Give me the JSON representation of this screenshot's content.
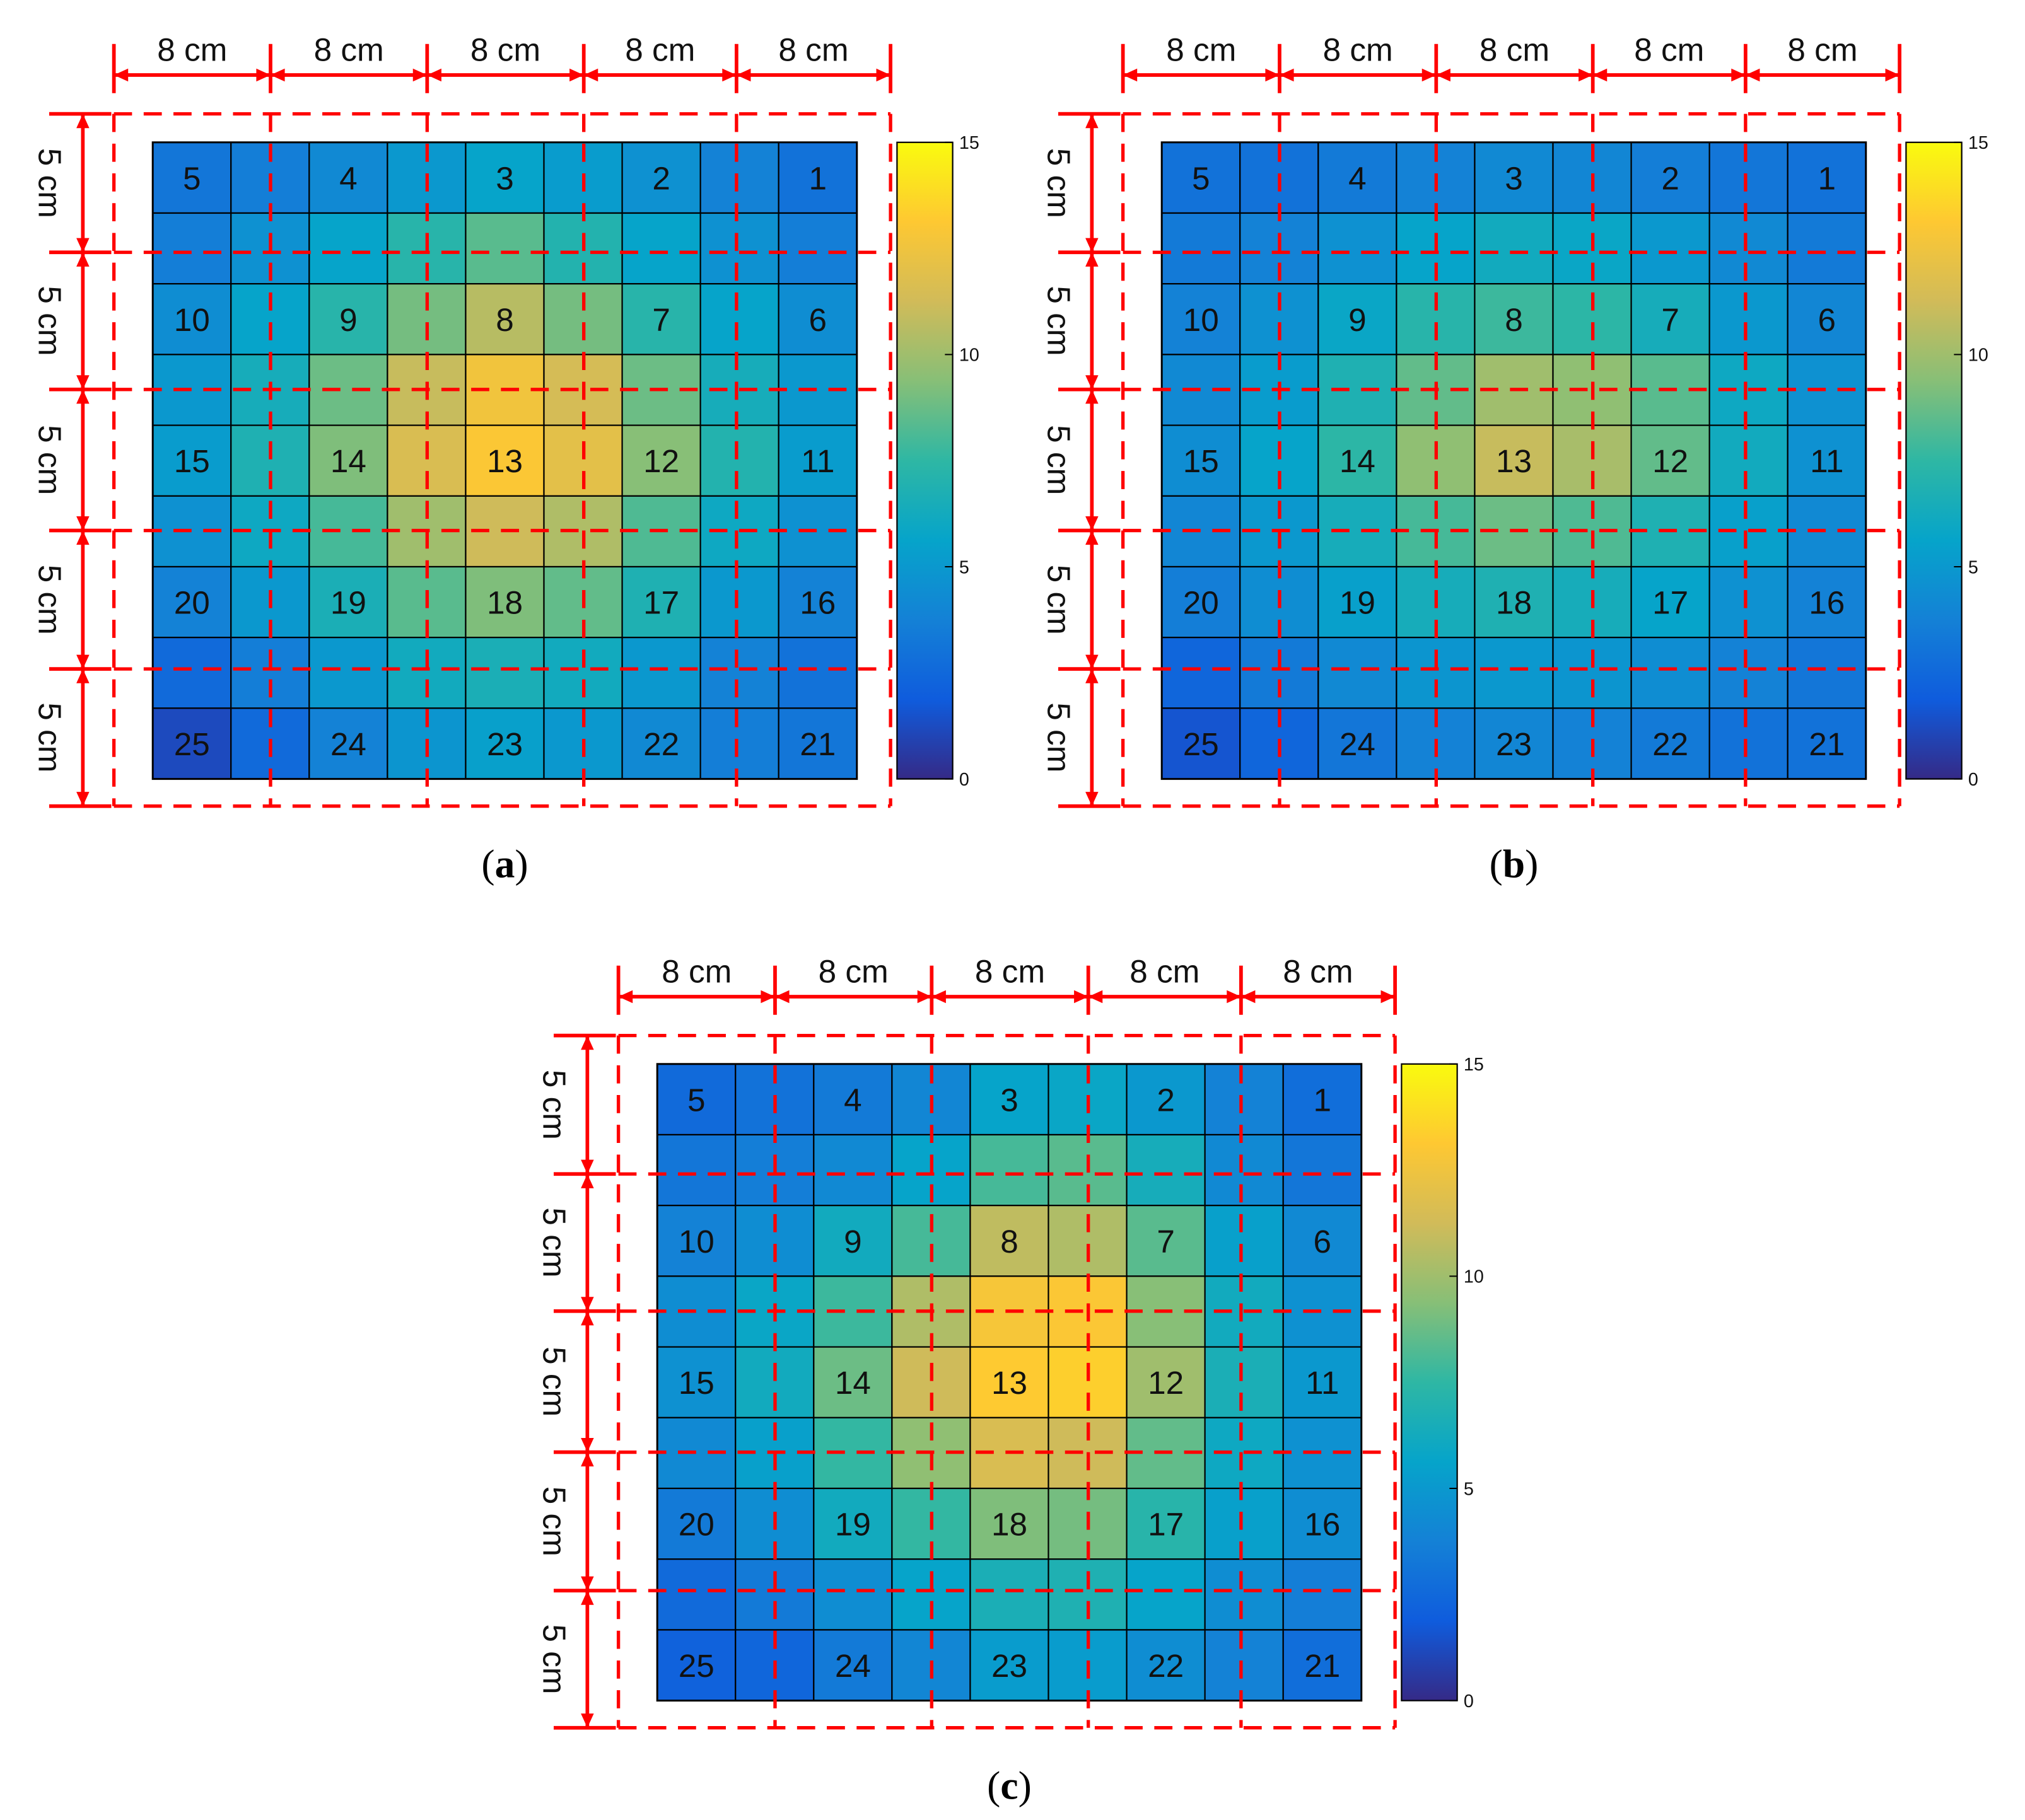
{
  "figure": {
    "colormap": "parula",
    "accent_color": "#ff0000",
    "color_range": [
      0,
      15
    ],
    "colorbar_ticks": [
      "15",
      "10",
      "5",
      "0"
    ],
    "width_label": "8 cm",
    "height_label": "5 cm"
  },
  "chart_data": [
    {
      "type": "heatmap",
      "panel": "a",
      "caption_letter": "a",
      "rows": 9,
      "cols": 9,
      "col_dim_labels": [
        "8 cm",
        "8 cm",
        "8 cm",
        "8 cm",
        "8 cm"
      ],
      "row_dim_labels": [
        "5 cm",
        "5 cm",
        "5 cm",
        "5 cm",
        "5 cm"
      ],
      "cell_labels": [
        "5",
        "",
        "4",
        "",
        "3",
        "",
        "2",
        "",
        "1",
        "",
        "",
        "",
        "",
        "",
        "",
        "",
        "",
        "",
        "10",
        "",
        "9",
        "",
        "8",
        "",
        "7",
        "",
        "6",
        "",
        "",
        "",
        "",
        "",
        "",
        "",
        "",
        "",
        "15",
        "",
        "14",
        "",
        "13",
        "",
        "12",
        "",
        "11",
        "",
        "",
        "",
        "",
        "",
        "",
        "",
        "",
        "",
        "20",
        "",
        "19",
        "",
        "18",
        "",
        "17",
        "",
        "16",
        "",
        "",
        "",
        "",
        "",
        "",
        "",
        "",
        "",
        "25",
        "",
        "24",
        "",
        "23",
        "",
        "22",
        "",
        "21"
      ],
      "values": [
        [
          3.2,
          3.6,
          4.2,
          5.0,
          5.6,
          5.2,
          4.6,
          3.8,
          3.0
        ],
        [
          3.6,
          4.6,
          5.6,
          7.2,
          8.4,
          7.0,
          5.6,
          4.6,
          3.6
        ],
        [
          4.4,
          5.6,
          7.2,
          9.0,
          10.6,
          9.0,
          7.2,
          5.6,
          4.4
        ],
        [
          5.0,
          6.4,
          8.8,
          11.0,
          12.6,
          11.4,
          8.8,
          6.4,
          5.0
        ],
        [
          5.2,
          6.8,
          9.2,
          11.6,
          13.0,
          12.0,
          9.4,
          7.0,
          5.2
        ],
        [
          4.6,
          6.0,
          8.0,
          10.0,
          11.2,
          10.4,
          8.2,
          6.0,
          4.6
        ],
        [
          3.8,
          5.0,
          6.6,
          8.4,
          9.2,
          8.6,
          6.8,
          5.0,
          3.8
        ],
        [
          2.6,
          3.6,
          5.0,
          6.2,
          6.6,
          6.2,
          5.0,
          3.8,
          3.0
        ],
        [
          1.2,
          2.6,
          3.8,
          4.8,
          5.4,
          5.0,
          4.2,
          3.6,
          3.2
        ]
      ],
      "colorbar_range": [
        0,
        15
      ]
    },
    {
      "type": "heatmap",
      "panel": "b",
      "caption_letter": "b",
      "rows": 9,
      "cols": 9,
      "col_dim_labels": [
        "8 cm",
        "8 cm",
        "8 cm",
        "8 cm",
        "8 cm"
      ],
      "row_dim_labels": [
        "5 cm",
        "5 cm",
        "5 cm",
        "5 cm",
        "5 cm"
      ],
      "cell_labels": [
        "5",
        "",
        "4",
        "",
        "3",
        "",
        "2",
        "",
        "1",
        "",
        "",
        "",
        "",
        "",
        "",
        "",
        "",
        "",
        "10",
        "",
        "9",
        "",
        "8",
        "",
        "7",
        "",
        "6",
        "",
        "",
        "",
        "",
        "",
        "",
        "",
        "",
        "",
        "15",
        "",
        "14",
        "",
        "13",
        "",
        "12",
        "",
        "11",
        "",
        "",
        "",
        "",
        "",
        "",
        "",
        "",
        "",
        "20",
        "",
        "19",
        "",
        "18",
        "",
        "17",
        "",
        "16",
        "",
        "",
        "",
        "",
        "",
        "",
        "",
        "",
        "",
        "25",
        "",
        "24",
        "",
        "23",
        "",
        "22",
        "",
        "21"
      ],
      "values": [
        [
          3.0,
          3.0,
          3.4,
          3.8,
          4.2,
          4.0,
          3.6,
          3.2,
          3.0
        ],
        [
          3.4,
          3.8,
          4.6,
          5.6,
          6.2,
          5.8,
          5.0,
          4.2,
          3.4
        ],
        [
          3.8,
          4.6,
          5.8,
          7.2,
          7.8,
          7.4,
          6.4,
          5.0,
          4.0
        ],
        [
          4.2,
          5.2,
          6.8,
          8.6,
          10.0,
          9.6,
          8.4,
          6.0,
          4.6
        ],
        [
          4.4,
          5.6,
          7.4,
          9.6,
          11.0,
          10.2,
          8.6,
          6.2,
          4.6
        ],
        [
          4.0,
          5.0,
          6.4,
          8.0,
          8.8,
          8.2,
          6.8,
          5.4,
          4.2
        ],
        [
          3.6,
          4.4,
          5.4,
          6.4,
          6.8,
          6.4,
          5.6,
          4.6,
          3.8
        ],
        [
          2.4,
          3.4,
          4.2,
          4.8,
          5.0,
          4.8,
          4.4,
          3.8,
          3.2
        ],
        [
          1.6,
          2.4,
          3.2,
          3.8,
          4.0,
          3.8,
          3.4,
          3.0,
          3.0
        ]
      ],
      "colorbar_range": [
        0,
        15
      ]
    },
    {
      "type": "heatmap",
      "panel": "c",
      "caption_letter": "c",
      "rows": 9,
      "cols": 9,
      "col_dim_labels": [
        "8 cm",
        "8 cm",
        "8 cm",
        "8 cm",
        "8 cm"
      ],
      "row_dim_labels": [
        "5 cm",
        "5 cm",
        "5 cm",
        "5 cm",
        "5 cm"
      ],
      "cell_labels": [
        "5",
        "",
        "4",
        "",
        "3",
        "",
        "2",
        "",
        "1",
        "",
        "",
        "",
        "",
        "",
        "",
        "",
        "",
        "",
        "10",
        "",
        "9",
        "",
        "8",
        "",
        "7",
        "",
        "6",
        "",
        "",
        "",
        "",
        "",
        "",
        "",
        "",
        "",
        "15",
        "",
        "14",
        "",
        "13",
        "",
        "12",
        "",
        "11",
        "",
        "",
        "",
        "",
        "",
        "",
        "",
        "",
        "",
        "20",
        "",
        "19",
        "",
        "18",
        "",
        "17",
        "",
        "16",
        "",
        "",
        "",
        "",
        "",
        "",
        "",
        "",
        "",
        "25",
        "",
        "24",
        "",
        "23",
        "",
        "22",
        "",
        "21"
      ],
      "values": [
        [
          2.6,
          3.0,
          3.4,
          4.0,
          5.6,
          5.8,
          5.0,
          3.8,
          2.8
        ],
        [
          3.2,
          3.6,
          4.2,
          5.6,
          8.0,
          8.4,
          6.4,
          4.2,
          3.2
        ],
        [
          3.8,
          4.4,
          6.2,
          8.0,
          10.8,
          10.4,
          8.4,
          5.4,
          4.2
        ],
        [
          4.4,
          5.8,
          7.8,
          10.4,
          12.8,
          13.0,
          9.4,
          6.2,
          4.6
        ],
        [
          4.6,
          6.2,
          8.8,
          11.2,
          13.2,
          13.4,
          10.0,
          6.6,
          5.0
        ],
        [
          4.2,
          5.4,
          7.6,
          9.6,
          11.6,
          11.2,
          8.6,
          6.0,
          4.6
        ],
        [
          3.4,
          4.4,
          6.2,
          7.6,
          9.2,
          9.0,
          7.2,
          5.4,
          4.4
        ],
        [
          2.6,
          3.4,
          4.4,
          5.6,
          6.6,
          6.8,
          5.6,
          4.4,
          3.6
        ],
        [
          2.2,
          2.4,
          3.4,
          4.0,
          5.2,
          5.2,
          4.4,
          3.8,
          2.8
        ]
      ],
      "colorbar_range": [
        0,
        15
      ]
    }
  ]
}
